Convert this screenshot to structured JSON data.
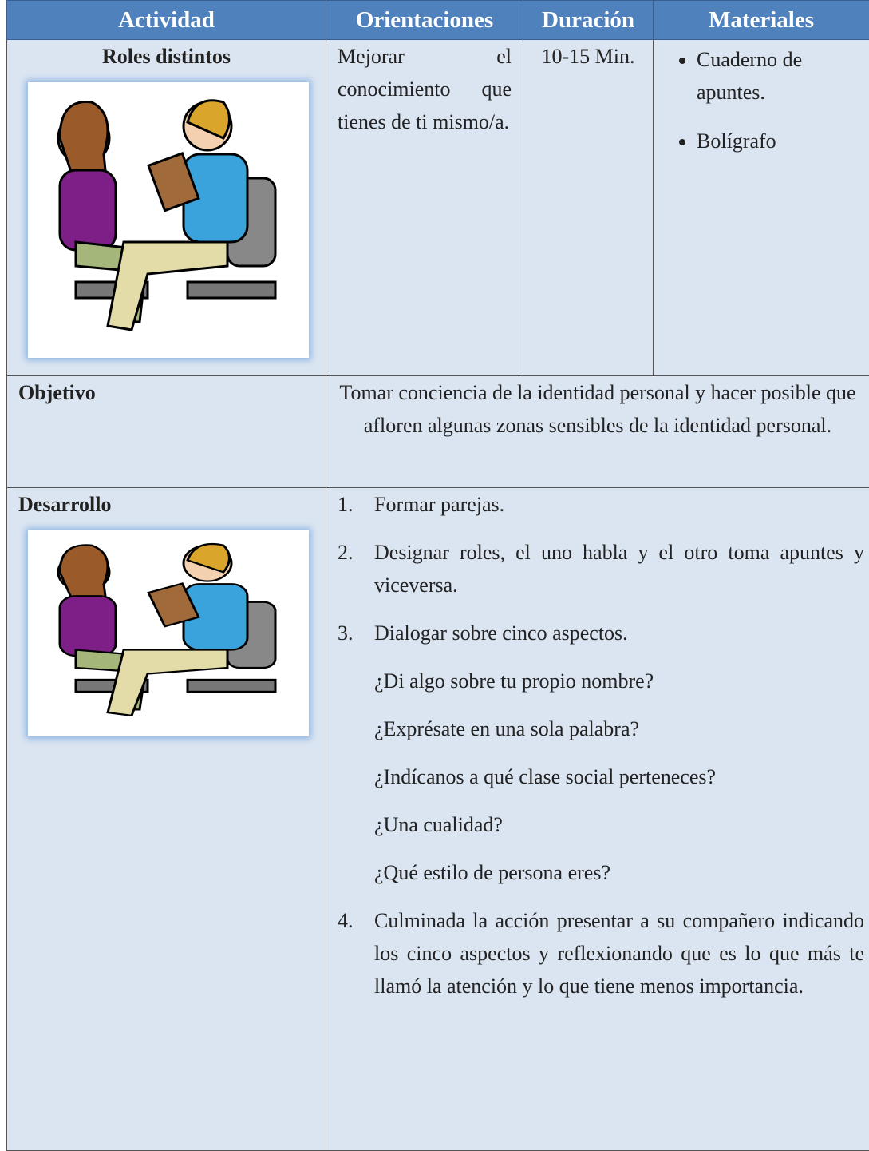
{
  "table": {
    "header": [
      "Actividad",
      "Orientaciones",
      "Duración",
      "Materiales"
    ],
    "activity": {
      "name": "Roles distintos",
      "orientation": "Mejorar el conocimiento que tienes de ti mismo/a.",
      "duration": "10-15 Min.",
      "materials": [
        "Cuaderno de apuntes.",
        "Bolígrafo"
      ]
    },
    "objective": {
      "label": "Objetivo",
      "text": "Tomar conciencia de la identidad personal y hacer posible que afloren algunas zonas sensibles de la identidad personal."
    },
    "development": {
      "label": "Desarrollo",
      "steps": [
        {
          "number": "1.",
          "text": "Formar parejas."
        },
        {
          "number": "2.",
          "text": "Designar roles, el uno habla y el otro toma apuntes y viceversa."
        },
        {
          "number": "3.",
          "text": "Dialogar sobre cinco aspectos."
        }
      ],
      "questions": [
        "¿Di algo sobre tu propio nombre?",
        "¿Exprésate en una sola palabra?",
        "¿Indícanos a qué clase social perteneces?",
        "¿Una cualidad?",
        "¿Qué estilo de persona eres?"
      ],
      "final_step": {
        "number": "4.",
        "text": "Culminada la acción presentar a su compañero indicando los cinco aspectos y reflexionando que es lo que más te llamó la atención y lo que tiene menos importancia."
      }
    }
  }
}
